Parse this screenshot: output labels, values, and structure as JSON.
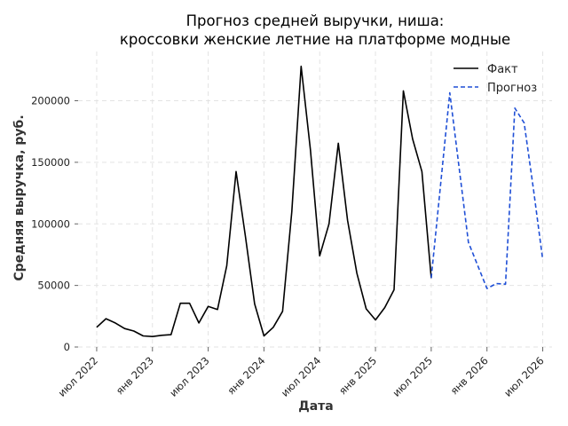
{
  "chart_data": {
    "type": "line",
    "title": [
      "Прогноз средней выручки, ниша:",
      "кроссовки женские летние на платформе модные"
    ],
    "xlabel": "Дата",
    "ylabel": "Средняя выручка, руб.",
    "ylim": [
      0,
      240000
    ],
    "xlim": [
      "2022-05",
      "2026-08"
    ],
    "y_ticks": [
      0,
      50000,
      100000,
      150000,
      200000
    ],
    "x_ticks": [
      {
        "value": "2022-07",
        "label": "июл 2022"
      },
      {
        "value": "2023-01",
        "label": "янв 2023"
      },
      {
        "value": "2023-07",
        "label": "июл 2023"
      },
      {
        "value": "2024-01",
        "label": "янв 2024"
      },
      {
        "value": "2024-07",
        "label": "июл 2024"
      },
      {
        "value": "2025-01",
        "label": "янв 2025"
      },
      {
        "value": "2025-07",
        "label": "июл 2025"
      },
      {
        "value": "2026-01",
        "label": "янв 2026"
      },
      {
        "value": "2026-07",
        "label": "июл 2026"
      }
    ],
    "grid": true,
    "legend_position": "top-right",
    "series": [
      {
        "name": "Факт",
        "color": "#000000",
        "style": "solid",
        "x": [
          "2022-07",
          "2022-08",
          "2022-09",
          "2022-10",
          "2022-11",
          "2022-12",
          "2023-01",
          "2023-02",
          "2023-03",
          "2023-04",
          "2023-05",
          "2023-06",
          "2023-07",
          "2023-08",
          "2023-09",
          "2023-10",
          "2023-11",
          "2023-12",
          "2024-01",
          "2024-02",
          "2024-03",
          "2024-04",
          "2024-05",
          "2024-06",
          "2024-07",
          "2024-08",
          "2024-09",
          "2024-10",
          "2024-11",
          "2024-12",
          "2025-01",
          "2025-02",
          "2025-03",
          "2025-04",
          "2025-05",
          "2025-06",
          "2025-07"
        ],
        "y": [
          16000,
          23000,
          19500,
          15000,
          13000,
          9000,
          8500,
          9500,
          10000,
          35500,
          35500,
          19500,
          33000,
          30500,
          66000,
          142500,
          90000,
          35000,
          9000,
          16000,
          29000,
          110000,
          228000,
          160000,
          74000,
          100000,
          165500,
          103000,
          60000,
          31000,
          22000,
          32000,
          46500,
          208000,
          169000,
          142500,
          56000
        ]
      },
      {
        "name": "Прогноз",
        "color": "#1f4fd6",
        "style": "dashed",
        "x": [
          "2025-07",
          "2025-09",
          "2025-11",
          "2026-01",
          "2026-02",
          "2026-03",
          "2026-04",
          "2026-05",
          "2026-06",
          "2026-07"
        ],
        "y": [
          56000,
          206500,
          85000,
          47500,
          51500,
          51000,
          194000,
          182000,
          128000,
          71000
        ]
      }
    ]
  }
}
